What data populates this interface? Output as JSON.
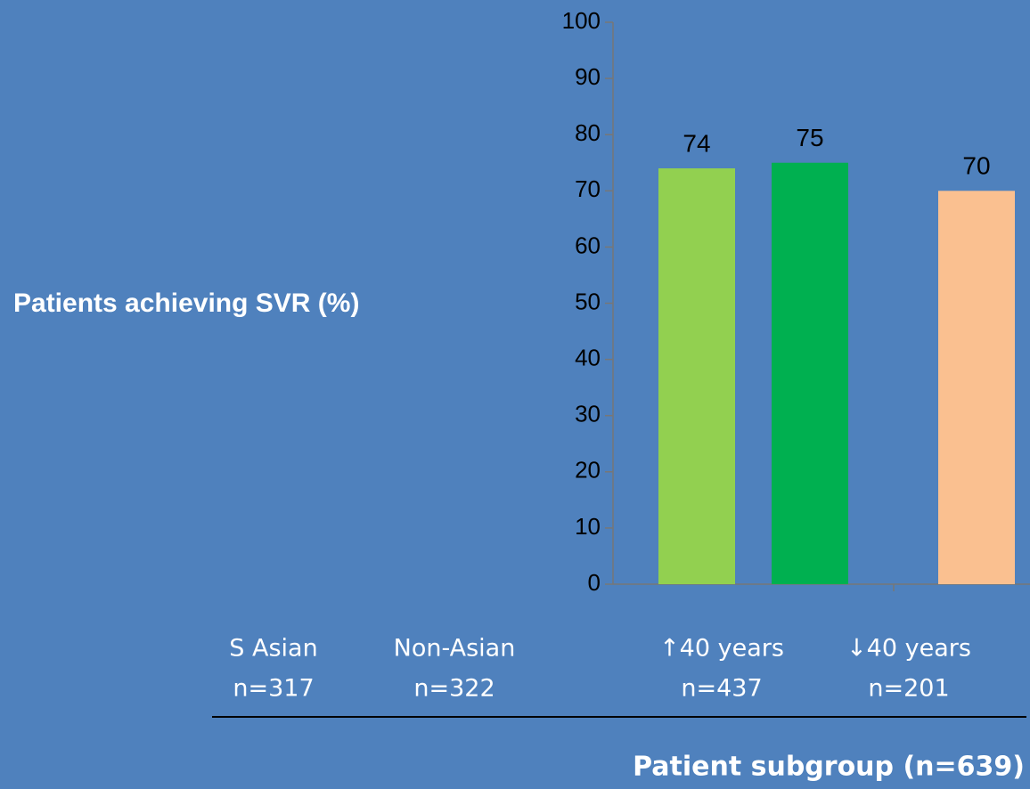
{
  "chart_data": {
    "type": "bar",
    "ylabel": "Patients achieving SVR (%)",
    "xlabel": "Patient subgroup (n=639)",
    "categories": [
      "S Asian",
      "Non-Asian",
      "↑40 years",
      "↓40 years"
    ],
    "category_n": [
      "n=317",
      "n=322",
      "n=437",
      "n=201"
    ],
    "values": [
      74,
      75,
      70,
      null
    ],
    "colors": [
      "#92d050",
      "#00b050",
      "#fac090",
      null
    ],
    "ylim": [
      0,
      100
    ],
    "yticks": [
      0,
      10,
      20,
      30,
      40,
      50,
      60,
      70,
      80,
      90,
      100
    ],
    "grid": false
  }
}
